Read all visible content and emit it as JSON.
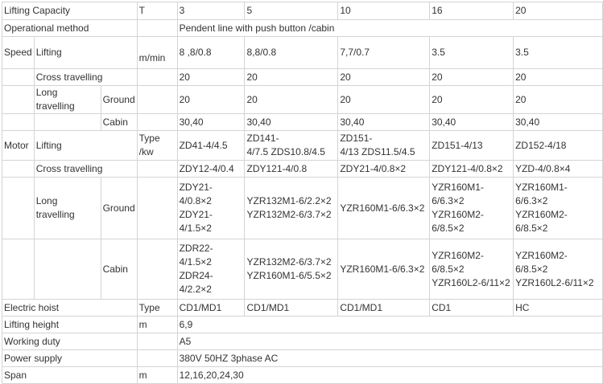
{
  "rows": {
    "capacity": {
      "label": "Lifting Capacity",
      "unit": "T",
      "values": [
        "3",
        "5",
        "10",
        "16",
        "20"
      ]
    },
    "operation": {
      "label": "Operational method",
      "value": "Pendent line with push button /cabin"
    },
    "speed": {
      "group": "Speed",
      "unit": "m/min",
      "lifting": {
        "label": "Lifting",
        "values": [
          "8 ,8/0.8",
          "8,8/0.8",
          "7,7/0.7",
          "3.5",
          "3.5"
        ]
      },
      "cross": {
        "label": "Cross travelling",
        "values": [
          "20",
          "20",
          "20",
          "20",
          "20"
        ]
      },
      "long_ground": {
        "label": "Long travelling",
        "sub": "Ground",
        "values": [
          "20",
          "20",
          "20",
          "20",
          "20"
        ]
      },
      "long_cabin": {
        "sub": "Cabin",
        "values": [
          "30,40",
          "30,40",
          "30,40",
          "30,40",
          "30,40"
        ]
      }
    },
    "motor": {
      "group": "Motor",
      "unit": "Type /kw",
      "lifting": {
        "label": "Lifting",
        "values": [
          "ZD41-4/4.5",
          "ZD141-\n4/7.5 ZDS10.8/4.5",
          "ZD151-\n4/13 ZDS11.5/4.5",
          "ZD151-4/13",
          "ZD152-4/18"
        ]
      },
      "cross": {
        "label": "Cross travelling",
        "values": [
          "ZDY12-4/0.4",
          "ZDY121-4/0.8",
          "ZDY21-4/0.8×2",
          "ZDY121-4/0.8×2",
          "YZD-4/0.8×4"
        ]
      },
      "long_ground": {
        "label": "Long travelling",
        "sub": "Ground",
        "values": [
          "ZDY21-\n4/0.8×2\nZDY21-\n4/1.5×2",
          "YZR132M1-6/2.2×2\nYZR132M2-6/3.7×2",
          "YZR160M1-6/6.3×2",
          "YZR160M1-\n6/6.3×2\nYZR160M2-\n6/8.5×2",
          "YZR160M1-\n6/6.3×2\nYZR160M2-\n6/8.5×2"
        ]
      },
      "long_cabin": {
        "sub": "Cabin",
        "values": [
          "ZDR22-\n4/1.5×2\nZDR24-\n4/2.2×2",
          "YZR132M2-6/3.7×2\nYZR160M1-6/5.5×2",
          "YZR160M1-6/6.3×2",
          "YZR160M2-\n6/8.5×2\nYZR160L2-6/11×2",
          "YZR160M2-\n6/8.5×2\nYZR160L2-6/11×2"
        ]
      }
    },
    "hoist": {
      "label": "Electric hoist",
      "unit": "Type",
      "values": [
        "CD1/MD1",
        "CD1/MD1",
        "CD1/MD1",
        "CD1",
        "HC"
      ]
    },
    "height": {
      "label": "Lifting height",
      "unit": "m",
      "value": "6,9"
    },
    "duty": {
      "label": "Working duty",
      "unit": "",
      "value": "A5"
    },
    "power": {
      "label": "Power supply",
      "unit": "",
      "value": "380V 50HZ 3phase AC"
    },
    "span": {
      "label": "Span",
      "unit": "m",
      "value": "12,16,20,24,30"
    }
  }
}
